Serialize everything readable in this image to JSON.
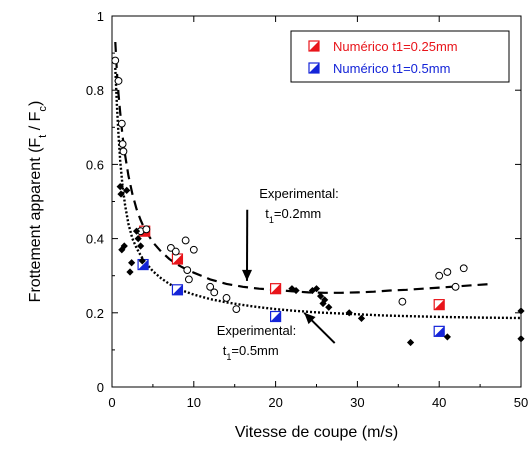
{
  "chart_data": {
    "type": "scatter",
    "xlabel": "Vitesse de coupe (m/s)",
    "ylabel": {
      "main": "Frottement apparent (F",
      "sub1": "t",
      "mid": " / F",
      "sub2": "c",
      "end": ")"
    },
    "xlim": [
      0,
      50
    ],
    "ylim": [
      0,
      1
    ],
    "x_ticks": [
      0,
      10,
      20,
      30,
      40,
      50
    ],
    "x_tick_labels": [
      "0",
      "10",
      "20",
      "30",
      "40",
      "50"
    ],
    "y_ticks": [
      0,
      0.2,
      0.4,
      0.6,
      0.8,
      1
    ],
    "y_tick_labels": [
      "0",
      "0.2",
      "0.4",
      "0.6",
      "0.8",
      "1"
    ],
    "grid": false,
    "legend_position": "top-right",
    "series": [
      {
        "name": "Numérico t1=0.25mm",
        "marker": "half-filled-square",
        "color": "#e8141a",
        "points": [
          [
            4,
            0.42
          ],
          [
            8,
            0.345
          ],
          [
            20,
            0.265
          ],
          [
            40,
            0.222
          ]
        ]
      },
      {
        "name": "Numérico t1=0.5mm",
        "marker": "half-filled-square",
        "color": "#1424d8",
        "points": [
          [
            3.8,
            0.33
          ],
          [
            8,
            0.262
          ],
          [
            20,
            0.19
          ],
          [
            40,
            0.15
          ]
        ]
      },
      {
        "marker": "open-circle",
        "color": "#000000",
        "points": [
          [
            0.4,
            0.88
          ],
          [
            0.8,
            0.825
          ],
          [
            1.2,
            0.71
          ],
          [
            1.3,
            0.655
          ],
          [
            1.4,
            0.635
          ],
          [
            3.5,
            0.42
          ],
          [
            4.2,
            0.425
          ],
          [
            7.2,
            0.375
          ],
          [
            7.8,
            0.365
          ],
          [
            9,
            0.395
          ],
          [
            10,
            0.37
          ],
          [
            9.2,
            0.315
          ],
          [
            9.4,
            0.29
          ],
          [
            12,
            0.27
          ],
          [
            12.5,
            0.255
          ],
          [
            14,
            0.24
          ],
          [
            15.2,
            0.21
          ],
          [
            35.5,
            0.23
          ],
          [
            40,
            0.3
          ],
          [
            41,
            0.31
          ],
          [
            42,
            0.27
          ],
          [
            43,
            0.32
          ]
        ]
      },
      {
        "marker": "filled-diamond",
        "color": "#000000",
        "points": [
          [
            1,
            0.54
          ],
          [
            1.1,
            0.52
          ],
          [
            1.2,
            0.37
          ],
          [
            1.5,
            0.38
          ],
          [
            1.8,
            0.53
          ],
          [
            2.2,
            0.31
          ],
          [
            2.4,
            0.335
          ],
          [
            3,
            0.42
          ],
          [
            3.2,
            0.4
          ],
          [
            3.5,
            0.38
          ],
          [
            3.7,
            0.34
          ],
          [
            22,
            0.265
          ],
          [
            22.5,
            0.26
          ],
          [
            24.5,
            0.26
          ],
          [
            25,
            0.265
          ],
          [
            25.5,
            0.245
          ],
          [
            25.8,
            0.225
          ],
          [
            26,
            0.235
          ],
          [
            26.5,
            0.215
          ],
          [
            29,
            0.2
          ],
          [
            30.5,
            0.185
          ],
          [
            36.5,
            0.12
          ],
          [
            41,
            0.135
          ],
          [
            50,
            0.205
          ],
          [
            50,
            0.13
          ]
        ]
      }
    ],
    "curves": [
      {
        "style": "dashed",
        "x": [
          0.4,
          0.6,
          0.8,
          1,
          1.3,
          1.6,
          2,
          2.5,
          3,
          3.5,
          4,
          5,
          6,
          7,
          8,
          9,
          10,
          12,
          14,
          16,
          18,
          20,
          22,
          24,
          26,
          28,
          30,
          32,
          34,
          36,
          38,
          40,
          42,
          44,
          46
        ],
        "y": [
          0.93,
          0.85,
          0.79,
          0.74,
          0.675,
          0.625,
          0.57,
          0.52,
          0.48,
          0.45,
          0.425,
          0.39,
          0.365,
          0.345,
          0.33,
          0.318,
          0.308,
          0.29,
          0.278,
          0.27,
          0.265,
          0.262,
          0.258,
          0.255,
          0.254,
          0.254,
          0.255,
          0.257,
          0.26,
          0.262,
          0.265,
          0.268,
          0.271,
          0.274,
          0.277
        ]
      },
      {
        "style": "dotted",
        "x": [
          0.4,
          0.6,
          0.8,
          1,
          1.3,
          1.6,
          2,
          2.5,
          3,
          3.5,
          4,
          5,
          6,
          7,
          8,
          9,
          10,
          12,
          14,
          16,
          18,
          20,
          22,
          25,
          28,
          30,
          33,
          36,
          40,
          45,
          50
        ],
        "y": [
          0.86,
          0.76,
          0.68,
          0.61,
          0.54,
          0.49,
          0.44,
          0.4,
          0.375,
          0.355,
          0.338,
          0.312,
          0.293,
          0.278,
          0.266,
          0.257,
          0.249,
          0.237,
          0.228,
          0.221,
          0.215,
          0.21,
          0.206,
          0.201,
          0.198,
          0.196,
          0.193,
          0.191,
          0.189,
          0.187,
          0.186
        ]
      }
    ],
    "annotations": [
      {
        "line1": "Experimental:",
        "line2_main": "t",
        "line2_sub": "1",
        "line2_end": "=0.2mm",
        "x": 18,
        "y": 0.51,
        "arrow_to": [
          16.5,
          0.286
        ]
      },
      {
        "line1": "Experimental:",
        "line2_main": "t",
        "line2_sub": "1",
        "line2_end": "=0.5mm",
        "x": 12.8,
        "y": 0.14,
        "arrow_to": [
          23.5,
          0.2
        ]
      }
    ]
  }
}
